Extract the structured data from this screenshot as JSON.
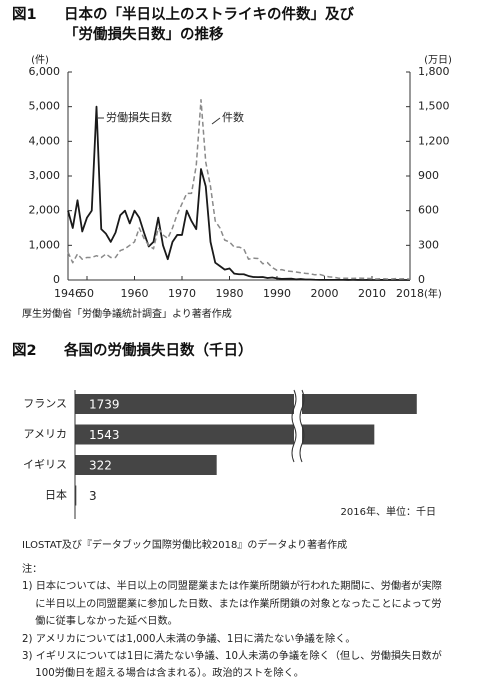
{
  "chart_data": [
    {
      "type": "line",
      "label": "図1",
      "title": [
        "日本の「半日以上のストライキの件数」及び",
        "「労働損失日数」の推移"
      ],
      "ylabel": "(件)",
      "y2label": "(万日)",
      "x_unit": "(年)",
      "x": [
        1946,
        1947,
        1948,
        1949,
        1950,
        1951,
        1952,
        1953,
        1954,
        1955,
        1956,
        1957,
        1958,
        1959,
        1960,
        1961,
        1962,
        1963,
        1964,
        1965,
        1966,
        1967,
        1968,
        1969,
        1970,
        1971,
        1972,
        1973,
        1974,
        1975,
        1976,
        1977,
        1978,
        1979,
        1980,
        1981,
        1982,
        1983,
        1984,
        1985,
        1986,
        1987,
        1988,
        1989,
        1990,
        1991,
        1992,
        1993,
        1994,
        1995,
        1996,
        1997,
        1998,
        1999,
        2000,
        2001,
        2002,
        2003,
        2004,
        2005,
        2006,
        2007,
        2008,
        2009,
        2010,
        2011,
        2012,
        2013,
        2014,
        2015,
        2016,
        2017,
        2018
      ],
      "series": [
        {
          "name": "労働損失日数",
          "color": "#1a1a1a",
          "axis": "y2",
          "dashed": false,
          "values": [
            600,
            450,
            690,
            420,
            540,
            600,
            1500,
            440,
            400,
            330,
            410,
            560,
            600,
            490,
            600,
            540,
            410,
            290,
            330,
            540,
            300,
            180,
            330,
            390,
            390,
            600,
            510,
            440,
            960,
            810,
            330,
            150,
            120,
            90,
            100,
            55,
            50,
            50,
            35,
            26,
            25,
            26,
            17,
            22,
            14,
            10,
            11,
            12,
            5,
            9,
            4,
            4,
            2,
            1,
            1,
            1,
            1,
            1,
            1,
            0.7,
            1,
            0.5,
            0.3,
            0.4,
            0.3,
            0.2,
            0.7,
            1.3,
            0.4,
            0.4,
            0.3,
            0.2,
            0.2
          ]
        },
        {
          "name": "件数",
          "color": "#8a8a8a",
          "axis": "y",
          "dashed": true,
          "values": [
            800,
            500,
            750,
            600,
            650,
            650,
            700,
            650,
            750,
            650,
            650,
            850,
            900,
            1000,
            1100,
            1500,
            1200,
            1000,
            900,
            1500,
            1300,
            1200,
            1500,
            1900,
            2200,
            2500,
            2500,
            3300,
            5200,
            3400,
            2700,
            1700,
            1500,
            1150,
            1100,
            950,
            950,
            900,
            600,
            630,
            620,
            470,
            500,
            360,
            280,
            300,
            260,
            250,
            230,
            210,
            190,
            180,
            150,
            160,
            120,
            90,
            80,
            50,
            50,
            50,
            46,
            54,
            52,
            48,
            38,
            28,
            38,
            31,
            27,
            39,
            31,
            38,
            26
          ]
        }
      ],
      "xlim": [
        1946,
        2018
      ],
      "xticks": [
        1946,
        {
          "value": 1950,
          "label": "50"
        },
        1960,
        1970,
        1980,
        1990,
        2000,
        2010,
        2018
      ],
      "ylim": [
        0,
        6000
      ],
      "yticks": [
        0,
        {
          "value": 1000,
          "label": "1,000"
        },
        {
          "value": 2000,
          "label": "2,000"
        },
        {
          "value": 3000,
          "label": "3,000"
        },
        {
          "value": 4000,
          "label": "4,000"
        },
        {
          "value": 5000,
          "label": "5,000"
        },
        {
          "value": 6000,
          "label": "6,000"
        }
      ],
      "y2lim": [
        0,
        1800
      ],
      "y2ticks": [
        0,
        300,
        600,
        900,
        {
          "value": 1200,
          "label": "1,200"
        },
        {
          "value": 1500,
          "label": "1,500"
        },
        {
          "value": 1800,
          "label": "1,800"
        }
      ],
      "grid": false,
      "source": "厚生労働省「労働争議統計調査」より著者作成"
    },
    {
      "type": "bar",
      "orientation": "horizontal",
      "label": "図2",
      "title": "各国の労働損失日数（千日）",
      "categories": [
        "フランス",
        "アメリカ",
        "イギリス",
        "日本"
      ],
      "values": [
        1739,
        1543,
        322,
        3
      ],
      "color": "#454545",
      "xlim": [
        0,
        1800
      ],
      "xbreak": [
        500,
        1200
      ],
      "note": "2016年、単位：千日",
      "source": "ILOSTAT及び『データブック国際労働比較2018』のデータより著者作成"
    }
  ],
  "notes": {
    "heading": "注：",
    "items": [
      "1) 日本については、半日以上の同盟罷業または作業所閉鎖が行われた期間に、労働者が実際に半日以上の同盟罷業に参加した日数、または作業所閉鎖の対象となったことによって労働に従事しなかった延べ日数。",
      "2) アメリカについては1,000人未満の争議、1日に満たない争議を除く。",
      "3) イギリスについては1日に満たない争議、10人未満の争議を除く（但し、労働損失日数が100労働日を超える場合は含まれる）。政治的ストを除く。"
    ]
  }
}
